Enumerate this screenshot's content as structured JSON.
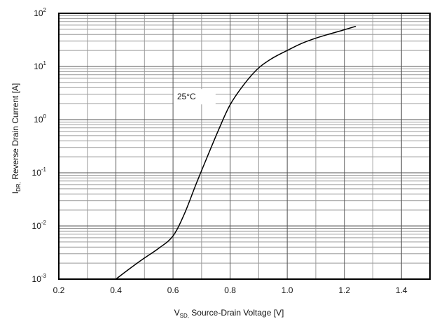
{
  "chart_data": {
    "type": "line",
    "title": "",
    "xlabel": {
      "main": "V",
      "sub": "SD,",
      "rest": " Source-Drain Voltage [V]"
    },
    "ylabel": {
      "main": "I",
      "sub": "DR,",
      "rest": " Reverse Drain Current [A]"
    },
    "xlim": [
      0.2,
      1.5
    ],
    "ylim": [
      0.001,
      100
    ],
    "yscale": "log",
    "grid": true,
    "xticks": [
      0.2,
      0.4,
      0.6,
      0.8,
      1.0,
      1.2,
      1.4
    ],
    "xtick_labels": [
      "0.2",
      "0.4",
      "0.6",
      "0.8",
      "1.0",
      "1.2",
      "1.4"
    ],
    "yticks": [
      {
        "value": 0.001,
        "base": "10",
        "exp": "-3"
      },
      {
        "value": 0.01,
        "base": "10",
        "exp": "-2"
      },
      {
        "value": 0.1,
        "base": "10",
        "exp": "-1"
      },
      {
        "value": 1,
        "base": "10",
        "exp": "0"
      },
      {
        "value": 10,
        "base": "10",
        "exp": "1"
      },
      {
        "value": 100,
        "base": "10",
        "exp": "2"
      }
    ],
    "series": [
      {
        "name": "",
        "color": "#000000",
        "x": [
          0.4,
          0.45,
          0.5,
          0.55,
          0.6,
          0.64,
          0.68,
          0.72,
          0.76,
          0.8,
          0.85,
          0.9,
          0.95,
          1.0,
          1.05,
          1.1,
          1.15,
          1.2,
          1.24
        ],
        "y": [
          0.001,
          0.0016,
          0.0025,
          0.0038,
          0.0065,
          0.017,
          0.06,
          0.2,
          0.65,
          1.9,
          4.7,
          9.4,
          14.5,
          20,
          27,
          34,
          41,
          49,
          57
        ]
      }
    ],
    "annotations": [
      {
        "text": "25°C",
        "x": 0.7,
        "y": 2.7
      }
    ]
  }
}
